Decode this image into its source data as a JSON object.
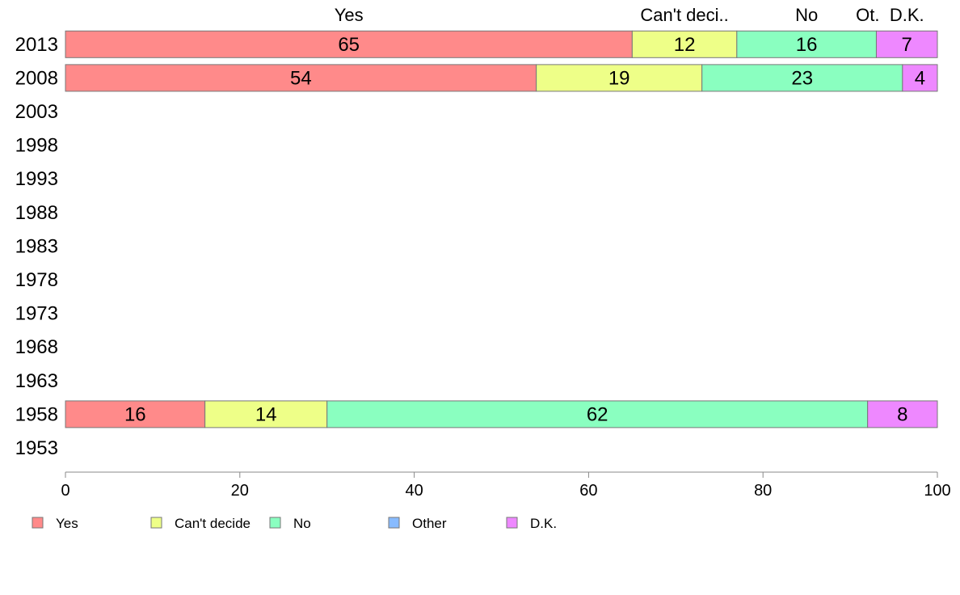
{
  "chart_data": {
    "type": "bar",
    "orientation": "horizontal",
    "stacked": true,
    "categories": [
      "2013",
      "2008",
      "2003",
      "1998",
      "1993",
      "1988",
      "1983",
      "1978",
      "1973",
      "1968",
      "1963",
      "1958",
      "1953"
    ],
    "series": [
      {
        "name": "Yes",
        "color": "#ff8a8a",
        "values": [
          65,
          54,
          null,
          null,
          null,
          null,
          null,
          null,
          null,
          null,
          null,
          16,
          null
        ]
      },
      {
        "name": "Can't decide",
        "color": "#eeff88",
        "values": [
          12,
          19,
          null,
          null,
          null,
          null,
          null,
          null,
          null,
          null,
          null,
          14,
          null
        ]
      },
      {
        "name": "No",
        "color": "#8affc0",
        "values": [
          16,
          23,
          null,
          null,
          null,
          null,
          null,
          null,
          null,
          null,
          null,
          62,
          null
        ]
      },
      {
        "name": "Other",
        "color": "#88bbff",
        "values": [
          0,
          0,
          null,
          null,
          null,
          null,
          null,
          null,
          null,
          null,
          null,
          0,
          null
        ]
      },
      {
        "name": "D.K.",
        "color": "#ee88ff",
        "values": [
          7,
          4,
          null,
          null,
          null,
          null,
          null,
          null,
          null,
          null,
          null,
          8,
          null
        ]
      }
    ],
    "top_labels": [
      "Yes",
      "Can't deci..",
      "No",
      "Ot.",
      "D.K."
    ],
    "xlim": [
      0,
      100
    ],
    "xticks": [
      "0",
      "20",
      "40",
      "60",
      "80",
      "100"
    ],
    "title": "",
    "xlabel": "",
    "ylabel": "",
    "grid": false,
    "legend_position": "bottom-left"
  }
}
